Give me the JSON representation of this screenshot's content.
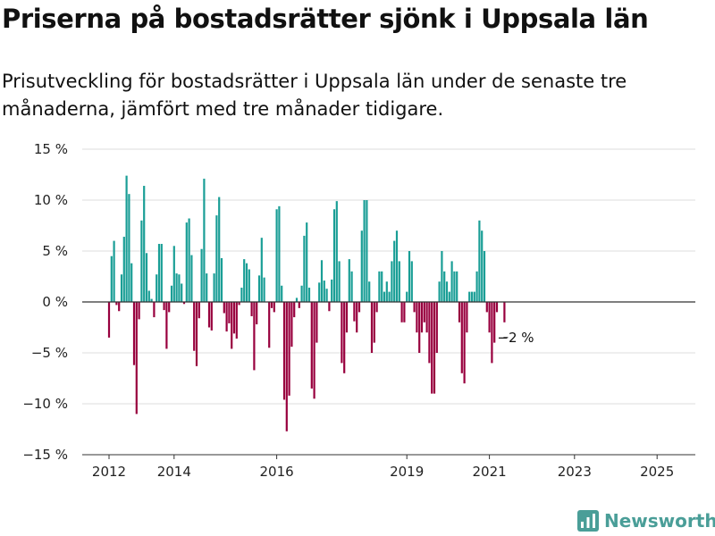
{
  "title": "Priserna på bostadsrätter sjönk i Uppsala län",
  "subtitle": "Prisutveckling för bostadsrätter i Uppsala län under de senaste tre månaderna, jämfört med tre månader tidigare.",
  "brand": {
    "name": "Newsworthy",
    "icon": "bar-chart-logo-icon"
  },
  "colors": {
    "positive": "#1a9e96",
    "negative": "#98003e",
    "grid": "#dddddd",
    "axis": "#333333",
    "brand": "#4a9e98"
  },
  "chart_data": {
    "type": "bar",
    "ylim": [
      -15,
      15
    ],
    "y_ticks": [
      15,
      10,
      5,
      0,
      -5,
      -10,
      -15
    ],
    "y_tick_labels": [
      "15 %",
      "10 %",
      "5 %",
      "0 %",
      "−5 %",
      "−10 %",
      "−15 %"
    ],
    "x_ticks": [
      "2012",
      "2014",
      "2016",
      "2019",
      "2021",
      "2023",
      "2025"
    ],
    "grid": true,
    "legend": "none",
    "annotation": "−2 %",
    "series": [
      {
        "values": [
          -3.5,
          4.5,
          6,
          -0.3,
          -0.9,
          2.7,
          6.4,
          12.4,
          10.6,
          3.8,
          -6.2,
          -11,
          -1.7,
          8,
          11.4,
          4.8,
          1.1,
          0.3,
          -1.5,
          2.7,
          5.7,
          5.7,
          -0.8,
          -4.6,
          -1,
          1.6,
          5.5,
          2.8,
          2.7,
          1.8,
          -0.2,
          7.8,
          8.2,
          4.6,
          -4.8,
          -6.3,
          -1.6,
          5.2,
          12.1,
          2.8,
          -2.5,
          -2.8,
          2.8,
          8.5,
          10.3,
          4.3,
          -1.1,
          -2.9,
          -2.1,
          -4.6,
          -3.1,
          -3.6,
          -0.3,
          1.4,
          4.2,
          3.8,
          3.2,
          -1.4,
          -6.7,
          -2.2,
          2.6,
          6.3,
          2.4,
          0,
          -4.5,
          -0.6,
          -1,
          9.1,
          9.4,
          1.6,
          -9.6,
          -12.7,
          -9.2,
          -4.4,
          -1.5,
          0.4,
          -0.6,
          1.6,
          6.5,
          7.8,
          1.4,
          -8.5,
          -9.5,
          -4,
          1.9,
          4.1,
          2.1,
          1.3,
          -0.9,
          2.2,
          9.1,
          9.9,
          4,
          -6,
          -7,
          -3,
          4.2,
          3,
          -1.9,
          -3,
          -1,
          7,
          10,
          10,
          2,
          -5,
          -4,
          -1,
          3,
          3,
          1,
          2,
          1,
          4,
          6,
          7,
          4,
          -2,
          -2,
          1,
          5,
          4,
          -1,
          -3,
          -5,
          -3,
          -2,
          -3,
          -6,
          -9,
          -9,
          -5,
          2,
          5,
          3,
          2,
          1,
          4,
          3,
          3,
          -2,
          -7,
          -8,
          -3,
          1,
          1,
          1,
          3,
          8,
          7,
          5,
          -1,
          -3,
          -6,
          -4,
          -1,
          0,
          0,
          -2
        ]
      }
    ]
  }
}
